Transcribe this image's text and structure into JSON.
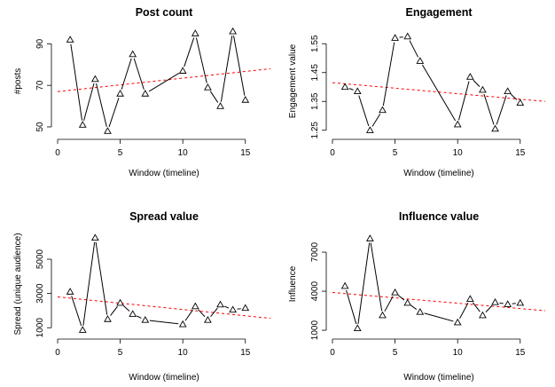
{
  "chart_data": [
    {
      "type": "line",
      "title": "Post count",
      "xlabel": "Window (timeline)",
      "ylabel": "#posts",
      "xlim": [
        0,
        17
      ],
      "ylim": [
        47,
        97
      ],
      "xticks": [
        0,
        5,
        10,
        15
      ],
      "yticks": [
        50,
        70,
        90
      ],
      "x": [
        1,
        2,
        3,
        4,
        5,
        6,
        7,
        10,
        11,
        12,
        13,
        14,
        15
      ],
      "y": [
        92,
        51,
        73,
        48,
        66,
        85,
        66,
        77,
        95,
        69,
        60,
        96,
        63
      ],
      "trend": {
        "y_start": 67,
        "y_end": 78
      }
    },
    {
      "type": "line",
      "title": "Engagement",
      "xlabel": "Window (timeline)",
      "ylabel": "Engagement value",
      "xlim": [
        0,
        17
      ],
      "ylim": [
        1.24,
        1.6
      ],
      "xticks": [
        0,
        5,
        10,
        15
      ],
      "yticks": [
        1.25,
        1.35,
        1.45,
        1.55
      ],
      "x": [
        1,
        2,
        3,
        4,
        5,
        6,
        7,
        10,
        11,
        12,
        13,
        14,
        15
      ],
      "y": [
        1.4,
        1.385,
        1.25,
        1.32,
        1.57,
        1.575,
        1.49,
        1.27,
        1.435,
        1.39,
        1.255,
        1.385,
        1.345
      ],
      "trend": {
        "y_start": 1.415,
        "y_end": 1.35
      }
    },
    {
      "type": "line",
      "title": "Spread value",
      "xlabel": "Window (timeline)",
      "ylabel": "Spread (unique audience)",
      "xlim": [
        0,
        17
      ],
      "ylim": [
        700,
        6400
      ],
      "xticks": [
        0,
        5,
        10,
        15
      ],
      "yticks": [
        1000,
        3000,
        5000
      ],
      "x": [
        1,
        2,
        3,
        4,
        5,
        6,
        7,
        10,
        11,
        12,
        13,
        14,
        15
      ],
      "y": [
        3100,
        870,
        6250,
        1500,
        2450,
        1800,
        1450,
        1200,
        2250,
        1450,
        2350,
        2050,
        2150
      ],
      "trend": {
        "y_start": 2800,
        "y_end": 1550
      }
    },
    {
      "type": "line",
      "title": "Influence value",
      "xlabel": "Window (timeline)",
      "ylabel": "Influence",
      "xlim": [
        0,
        17
      ],
      "ylim": [
        800,
        8300
      ],
      "xticks": [
        0,
        5,
        10,
        15
      ],
      "yticks": [
        1000,
        4000,
        7000
      ],
      "x": [
        1,
        2,
        3,
        4,
        5,
        6,
        7,
        10,
        11,
        12,
        13,
        14,
        15
      ],
      "y": [
        4400,
        1150,
        8050,
        2150,
        3900,
        3100,
        2400,
        1600,
        3400,
        2150,
        3150,
        3000,
        3100
      ],
      "trend": {
        "y_start": 3900,
        "y_end": 2500
      }
    }
  ]
}
